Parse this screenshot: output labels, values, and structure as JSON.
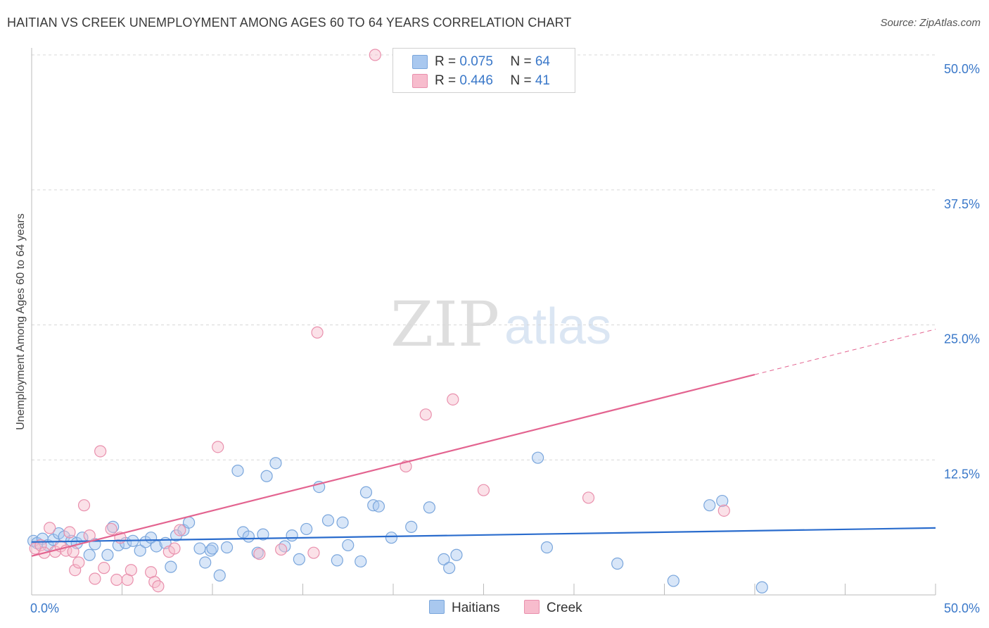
{
  "title": "HAITIAN VS CREEK UNEMPLOYMENT AMONG AGES 60 TO 64 YEARS CORRELATION CHART",
  "source": "Source: ZipAtlas.com",
  "watermark": {
    "zip": "ZIP",
    "atlas": "atlas"
  },
  "legend": {
    "rows": [
      {
        "r_label": "R = ",
        "r_value": "0.075",
        "n_label": "N = ",
        "n_value": "64",
        "color": "#a9c8ef",
        "border": "#7aa6dc"
      },
      {
        "r_label": "R = ",
        "r_value": "0.446",
        "n_label": "N = ",
        "n_value": "41",
        "color": "#f7bccd",
        "border": "#e990ad"
      }
    ]
  },
  "bottom_legend": [
    {
      "label": "Haitians",
      "color": "#a9c8ef",
      "border": "#7aa6dc"
    },
    {
      "label": "Creek",
      "color": "#f7bccd",
      "border": "#e990ad"
    }
  ],
  "chart_data": {
    "type": "scatter",
    "ylabel": "Unemployment Among Ages 60 to 64 years",
    "xlim": [
      0,
      50
    ],
    "ylim": [
      0,
      50
    ],
    "x_tick_labels": [
      "0.0%",
      "50.0%"
    ],
    "y_ticks": [
      12.5,
      25.0,
      37.5,
      50.0
    ],
    "y_tick_labels": [
      "12.5%",
      "25.0%",
      "37.5%",
      "50.0%"
    ],
    "grid": true,
    "series": [
      {
        "name": "Haitians",
        "color": "#7aa6dc",
        "fill": "#a9c8ef",
        "line_color": "#2a6ccd",
        "trend": {
          "x0": 0,
          "y0": 4.9,
          "x1": 50,
          "y1": 6.2,
          "dash_from": null
        },
        "points": [
          [
            0.1,
            5.0
          ],
          [
            0.3,
            4.8
          ],
          [
            0.6,
            5.2
          ],
          [
            0.9,
            4.6
          ],
          [
            1.2,
            5.1
          ],
          [
            1.5,
            5.7
          ],
          [
            1.8,
            5.4
          ],
          [
            2.2,
            5.0
          ],
          [
            2.5,
            4.8
          ],
          [
            2.8,
            5.3
          ],
          [
            3.2,
            3.7
          ],
          [
            3.5,
            4.7
          ],
          [
            4.2,
            3.7
          ],
          [
            4.5,
            6.3
          ],
          [
            4.8,
            4.6
          ],
          [
            5.2,
            4.8
          ],
          [
            5.6,
            5.0
          ],
          [
            6.0,
            4.1
          ],
          [
            6.3,
            4.9
          ],
          [
            6.6,
            5.3
          ],
          [
            6.9,
            4.5
          ],
          [
            7.4,
            4.8
          ],
          [
            7.7,
            2.6
          ],
          [
            8.0,
            5.5
          ],
          [
            8.4,
            6.0
          ],
          [
            8.7,
            6.7
          ],
          [
            9.3,
            4.3
          ],
          [
            9.6,
            3.0
          ],
          [
            9.9,
            4.1
          ],
          [
            10.0,
            4.3
          ],
          [
            10.4,
            1.8
          ],
          [
            10.8,
            4.4
          ],
          [
            11.4,
            11.5
          ],
          [
            11.7,
            5.8
          ],
          [
            12.0,
            5.4
          ],
          [
            12.5,
            3.9
          ],
          [
            12.8,
            5.6
          ],
          [
            13.0,
            11.0
          ],
          [
            13.5,
            12.2
          ],
          [
            14.0,
            4.5
          ],
          [
            14.4,
            5.5
          ],
          [
            14.8,
            3.3
          ],
          [
            15.2,
            6.1
          ],
          [
            15.9,
            10.0
          ],
          [
            16.4,
            6.9
          ],
          [
            16.9,
            3.2
          ],
          [
            17.2,
            6.7
          ],
          [
            17.5,
            4.6
          ],
          [
            18.2,
            3.1
          ],
          [
            18.5,
            9.5
          ],
          [
            18.9,
            8.3
          ],
          [
            19.2,
            8.2
          ],
          [
            19.9,
            5.3
          ],
          [
            21.0,
            6.3
          ],
          [
            22.0,
            8.1
          ],
          [
            22.8,
            3.3
          ],
          [
            23.1,
            2.5
          ],
          [
            23.5,
            3.7
          ],
          [
            28.0,
            12.7
          ],
          [
            28.5,
            4.4
          ],
          [
            32.4,
            2.9
          ],
          [
            35.5,
            1.3
          ],
          [
            37.5,
            8.3
          ],
          [
            38.2,
            8.7
          ],
          [
            40.4,
            0.7
          ]
        ]
      },
      {
        "name": "Creek",
        "color": "#e990ad",
        "fill": "#f7bccd",
        "line_color": "#e36490",
        "trend": {
          "x0": 0,
          "y0": 3.6,
          "x1": 50,
          "y1": 24.6,
          "dash_from": 40
        },
        "points": [
          [
            0.2,
            4.3
          ],
          [
            0.5,
            4.6
          ],
          [
            0.7,
            3.9
          ],
          [
            1.0,
            6.2
          ],
          [
            1.3,
            4.0
          ],
          [
            1.6,
            4.5
          ],
          [
            1.9,
            4.1
          ],
          [
            2.1,
            5.8
          ],
          [
            2.3,
            4.0
          ],
          [
            2.4,
            2.3
          ],
          [
            2.6,
            3.0
          ],
          [
            2.9,
            8.3
          ],
          [
            3.2,
            5.5
          ],
          [
            3.5,
            1.5
          ],
          [
            3.8,
            13.3
          ],
          [
            4.0,
            2.5
          ],
          [
            4.4,
            6.1
          ],
          [
            4.7,
            1.4
          ],
          [
            4.9,
            5.3
          ],
          [
            5.3,
            1.4
          ],
          [
            5.5,
            2.3
          ],
          [
            6.6,
            2.1
          ],
          [
            6.8,
            1.2
          ],
          [
            7.0,
            0.8
          ],
          [
            7.6,
            4.0
          ],
          [
            7.9,
            4.3
          ],
          [
            8.2,
            6.0
          ],
          [
            10.3,
            13.7
          ],
          [
            12.6,
            3.8
          ],
          [
            13.8,
            4.2
          ],
          [
            15.6,
            3.9
          ],
          [
            15.8,
            24.3
          ],
          [
            19.0,
            50.0
          ],
          [
            20.7,
            11.9
          ],
          [
            21.8,
            16.7
          ],
          [
            23.3,
            18.1
          ],
          [
            25.0,
            9.7
          ],
          [
            30.8,
            9.0
          ],
          [
            38.3,
            7.8
          ]
        ]
      }
    ]
  }
}
